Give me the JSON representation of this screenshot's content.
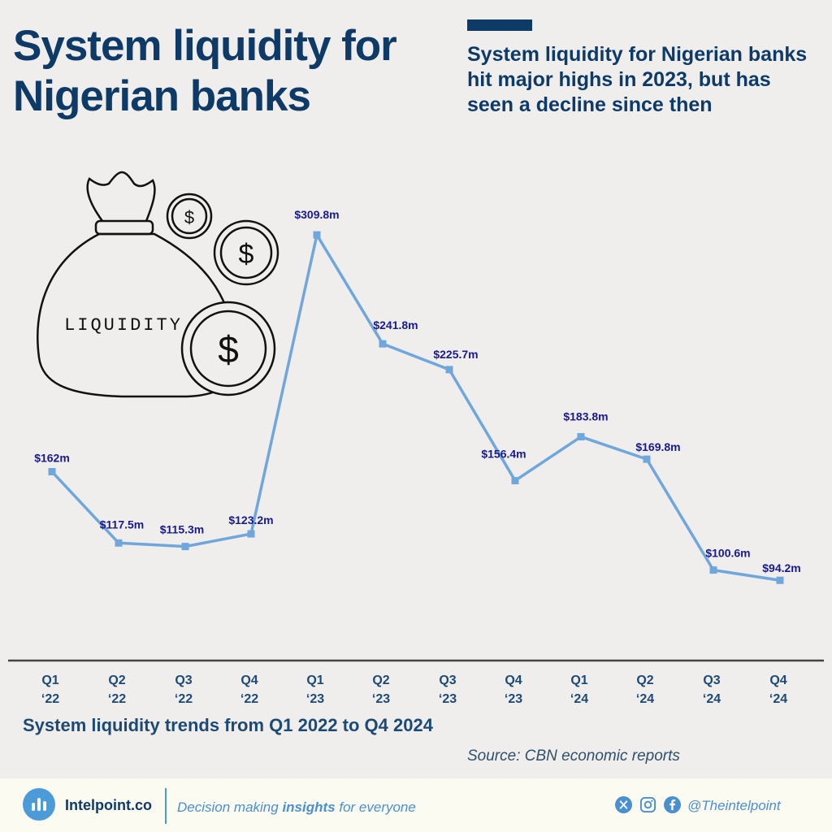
{
  "header": {
    "title": "System liquidity for Nigerian banks",
    "subtitle": "System liquidity for Nigerian banks hit major highs in 2023, but has seen a decline since then"
  },
  "illustration": {
    "bag_label": "LIQUIDITY",
    "coin_symbol": "$"
  },
  "chart_data": {
    "type": "line",
    "categories": [
      "Q1 ‘22",
      "Q2 ‘22",
      "Q3 ‘22",
      "Q4 ‘22",
      "Q1 ‘23",
      "Q2 ‘23",
      "Q3 ‘23",
      "Q4 ‘23",
      "Q1 ‘24",
      "Q2 ‘24",
      "Q3 ‘24",
      "Q4 ‘24"
    ],
    "values": [
      162,
      117.5,
      115.3,
      123.2,
      309.8,
      241.8,
      225.7,
      156.4,
      183.8,
      169.8,
      100.6,
      94.2
    ],
    "data_labels": [
      "$162m",
      "$117.5m",
      "$115.3m",
      "$123.2m",
      "$309.8m",
      "$241.8m",
      "$225.7m",
      "$156.4m",
      "$183.8m",
      "$169.8m",
      "$100.6m",
      "$94.2m"
    ],
    "ylim": [
      0,
      340
    ],
    "xlabel": "System liquidity trends from Q1 2022 to Q4 2024",
    "ylabel": "",
    "grid": false,
    "line_color": "#6fa6dc",
    "label_color": "#1a1a8c"
  },
  "footer": {
    "source": "Source: CBN economic reports",
    "brand": "Intelpoint.co",
    "tagline_pre": "Decision making ",
    "tagline_bold": "insights",
    "tagline_post": " for everyone",
    "handle": "@Theintelpoint",
    "social_icons": [
      "x-icon",
      "instagram-icon",
      "facebook-icon"
    ]
  },
  "colors": {
    "title": "#0d3a66",
    "accent": "#4a9bd8",
    "background": "#efeeec"
  }
}
